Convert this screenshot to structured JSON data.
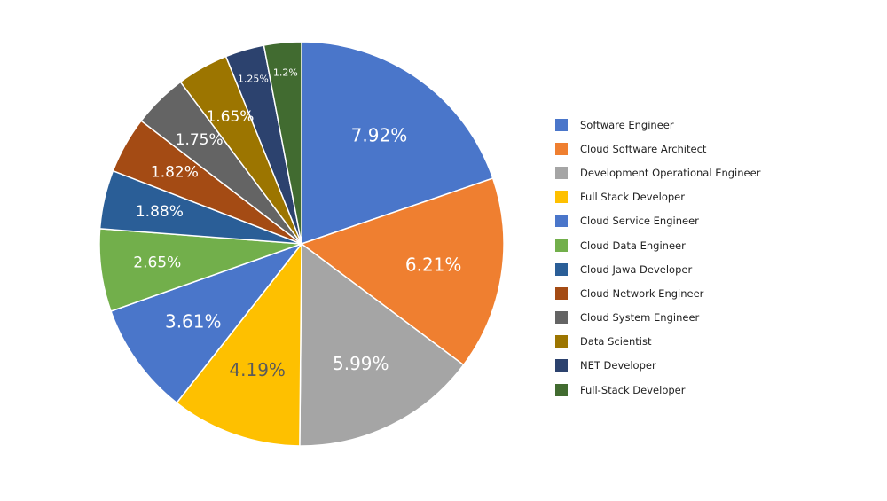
{
  "chart_data": {
    "type": "pie",
    "title": "",
    "start_angle_deg": 0,
    "direction": "clockwise",
    "legend_position": "right",
    "slices": [
      {
        "label": "Software Engineer",
        "value": 7.92,
        "display": "7.92%",
        "color": "#4a76ca",
        "label_color": "#ffffff"
      },
      {
        "label": "Cloud Software Architect",
        "value": 6.21,
        "display": "6.21%",
        "color": "#ef7f30",
        "label_color": "#ffffff"
      },
      {
        "label": "Development Operational Engineer",
        "value": 5.99,
        "display": "5.99%",
        "color": "#a5a5a5",
        "label_color": "#ffffff"
      },
      {
        "label": "Full Stack Developer",
        "value": 4.19,
        "display": "4.19%",
        "color": "#fec000",
        "label_color": "#5a5a5a"
      },
      {
        "label": "Cloud Service Engineer",
        "value": 3.61,
        "display": "3.61%",
        "color": "#4a76ca",
        "label_color": "#ffffff"
      },
      {
        "label": "Cloud Data Engineer",
        "value": 2.65,
        "display": "2.65%",
        "color": "#72af4b",
        "label_color": "#ffffff"
      },
      {
        "label": "Cloud Jawa Developer",
        "value": 1.88,
        "display": "1.88%",
        "color": "#2a5e97",
        "label_color": "#ffffff"
      },
      {
        "label": "Cloud Network Engineer",
        "value": 1.82,
        "display": "1.82%",
        "color": "#a44b14",
        "label_color": "#ffffff"
      },
      {
        "label": "Cloud System Engineer",
        "value": 1.75,
        "display": "1.75%",
        "color": "#646464",
        "label_color": "#ffffff"
      },
      {
        "label": "Data Scientist",
        "value": 1.65,
        "display": "1.65%",
        "color": "#9c7500",
        "label_color": "#ffffff"
      },
      {
        "label": "NET Developer",
        "value": 1.25,
        "display": "1.25%",
        "color": "#2c426e",
        "label_color": "#ffffff"
      },
      {
        "label": "Full-Stack Developer",
        "value": 1.2,
        "display": "1.2%",
        "color": "#416b30",
        "label_color": "#ffffff"
      }
    ]
  }
}
